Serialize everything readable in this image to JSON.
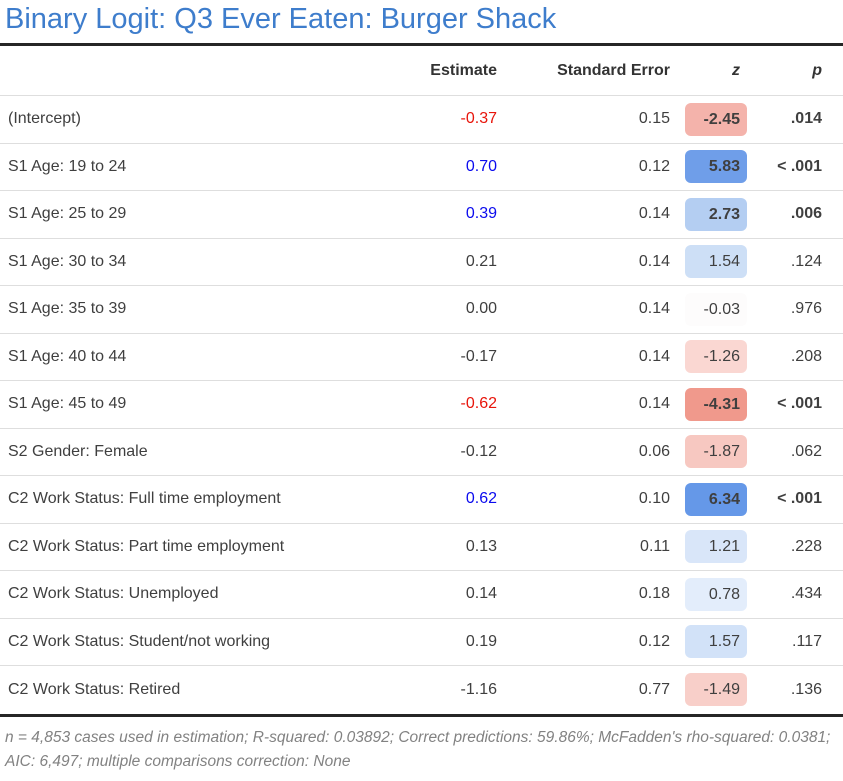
{
  "title": "Binary Logit: Q3 Ever Eaten: Burger Shack",
  "colors": {
    "title": "#3e7dcc",
    "positive_estimate": "#0b0bee",
    "negative_estimate": "#e8150b",
    "text": "#3f3f3f",
    "thick_rule": "#262626",
    "row_rule": "#dedede",
    "footnote": "#828282"
  },
  "table": {
    "columns": {
      "label": "",
      "estimate": "Estimate",
      "se": "Standard Error",
      "z": "z",
      "p": "p"
    },
    "rows": [
      {
        "label": "(Intercept)",
        "estimate": "-0.37",
        "estimate_color": "negative_estimate",
        "se": "0.15",
        "z": "-2.45",
        "z_bg": "#f4b3ab",
        "sig": true,
        "p": ".014"
      },
      {
        "label": "S1 Age: 19 to 24",
        "estimate": "0.70",
        "estimate_color": "positive_estimate",
        "se": "0.12",
        "z": "5.83",
        "z_bg": "#6f9ee9",
        "sig": true,
        "p": "< .001"
      },
      {
        "label": "S1 Age: 25 to 29",
        "estimate": "0.39",
        "estimate_color": "positive_estimate",
        "se": "0.14",
        "z": "2.73",
        "z_bg": "#b4cef2",
        "sig": true,
        "p": ".006"
      },
      {
        "label": "S1 Age: 30 to 34",
        "estimate": "0.21",
        "estimate_color": "",
        "se": "0.14",
        "z": "1.54",
        "z_bg": "#cddff6",
        "sig": false,
        "p": ".124"
      },
      {
        "label": "S1 Age: 35 to 39",
        "estimate": "0.00",
        "estimate_color": "",
        "se": "0.14",
        "z": "-0.03",
        "z_bg": "#fdfcfc",
        "sig": false,
        "p": ".976"
      },
      {
        "label": "S1 Age: 40 to 44",
        "estimate": "-0.17",
        "estimate_color": "",
        "se": "0.14",
        "z": "-1.26",
        "z_bg": "#fad7d2",
        "sig": false,
        "p": ".208"
      },
      {
        "label": "S1 Age: 45 to 49",
        "estimate": "-0.62",
        "estimate_color": "negative_estimate",
        "se": "0.14",
        "z": "-4.31",
        "z_bg": "#f0998c",
        "sig": true,
        "p": "< .001"
      },
      {
        "label": "S2 Gender: Female",
        "estimate": "-0.12",
        "estimate_color": "",
        "se": "0.06",
        "z": "-1.87",
        "z_bg": "#f7c8c1",
        "sig": false,
        "p": ".062"
      },
      {
        "label": "C2 Work Status: Full time employment",
        "estimate": "0.62",
        "estimate_color": "positive_estimate",
        "se": "0.10",
        "z": "6.34",
        "z_bg": "#6598e8",
        "sig": true,
        "p": "< .001"
      },
      {
        "label": "C2 Work Status: Part time employment",
        "estimate": "0.13",
        "estimate_color": "",
        "se": "0.11",
        "z": "1.21",
        "z_bg": "#d9e6f9",
        "sig": false,
        "p": ".228"
      },
      {
        "label": "C2 Work Status: Unemployed",
        "estimate": "0.14",
        "estimate_color": "",
        "se": "0.18",
        "z": "0.78",
        "z_bg": "#e3edfb",
        "sig": false,
        "p": ".434"
      },
      {
        "label": "C2 Work Status: Student/not working",
        "estimate": "0.19",
        "estimate_color": "",
        "se": "0.12",
        "z": "1.57",
        "z_bg": "#d2e2f8",
        "sig": false,
        "p": ".117"
      },
      {
        "label": "C2 Work Status: Retired",
        "estimate": "-1.16",
        "estimate_color": "",
        "se": "0.77",
        "z": "-1.49",
        "z_bg": "#f8cfc9",
        "sig": false,
        "p": ".136"
      }
    ]
  },
  "footnote": "n = 4,853 cases used in estimation; R-squared: 0.03892; Correct predictions: 59.86%; McFadden's rho-squared: 0.0381; AIC: 6,497; multiple comparisons correction: None",
  "chart_data": {
    "type": "table",
    "title": "Binary Logit: Q3 Ever Eaten: Burger Shack",
    "columns": [
      "",
      "Estimate",
      "Standard Error",
      "z",
      "p"
    ],
    "rows": [
      [
        "(Intercept)",
        -0.37,
        0.15,
        -2.45,
        ".014"
      ],
      [
        "S1 Age: 19 to 24",
        0.7,
        0.12,
        5.83,
        "< .001"
      ],
      [
        "S1 Age: 25 to 29",
        0.39,
        0.14,
        2.73,
        ".006"
      ],
      [
        "S1 Age: 30 to 34",
        0.21,
        0.14,
        1.54,
        ".124"
      ],
      [
        "S1 Age: 35 to 39",
        0.0,
        0.14,
        -0.03,
        ".976"
      ],
      [
        "S1 Age: 40 to 44",
        -0.17,
        0.14,
        -1.26,
        ".208"
      ],
      [
        "S1 Age: 45 to 49",
        -0.62,
        0.14,
        -4.31,
        "< .001"
      ],
      [
        "S2 Gender: Female",
        -0.12,
        0.06,
        -1.87,
        ".062"
      ],
      [
        "C2 Work Status: Full time employment",
        0.62,
        0.1,
        6.34,
        "< .001"
      ],
      [
        "C2 Work Status: Part time employment",
        0.13,
        0.11,
        1.21,
        ".228"
      ],
      [
        "C2 Work Status: Unemployed",
        0.14,
        0.18,
        0.78,
        ".434"
      ],
      [
        "C2 Work Status: Student/not working",
        0.19,
        0.12,
        1.57,
        ".117"
      ],
      [
        "C2 Work Status: Retired",
        -1.16,
        0.77,
        -1.49,
        ".136"
      ]
    ],
    "footnote": "n = 4,853 cases used in estimation; R-squared: 0.03892; Correct predictions: 59.86%; McFadden's rho-squared: 0.0381; AIC: 6,497; multiple comparisons correction: None"
  }
}
